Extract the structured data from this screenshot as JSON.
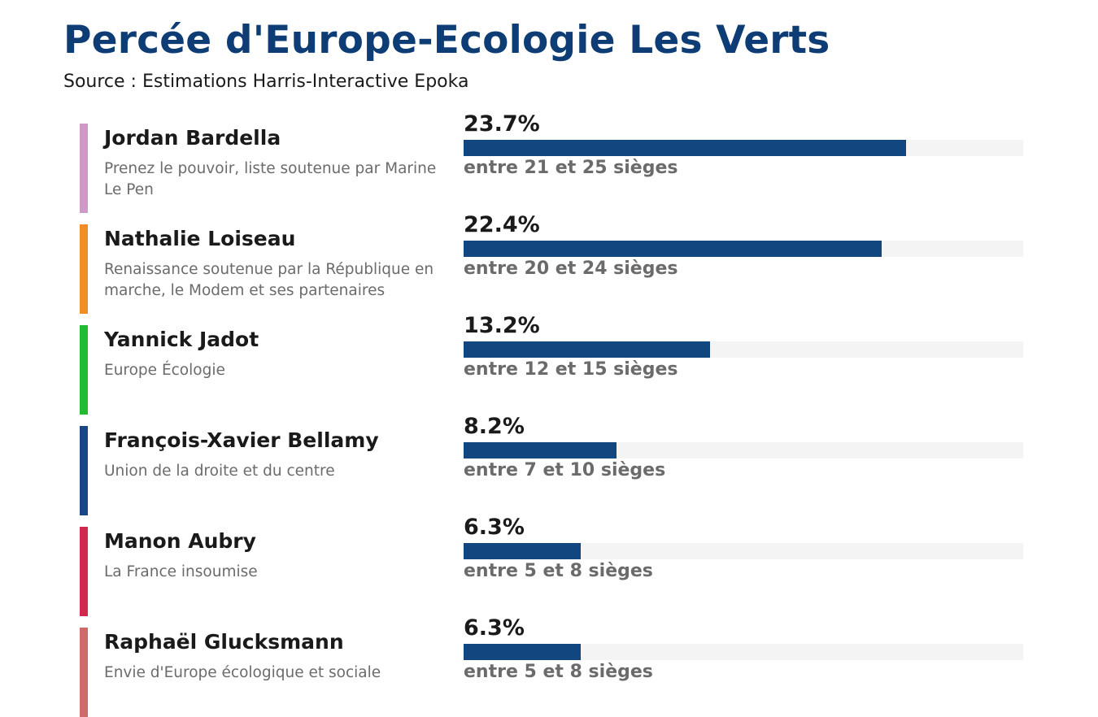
{
  "title": "Percée d'Europe-Ecologie Les Verts",
  "subtitle": "Source : Estimations Harris-Interactive Epoka",
  "chart_data": {
    "type": "bar",
    "orientation": "horizontal",
    "title": "Percée d'Europe-Ecologie Les Verts",
    "subtitle": "Source : Estimations Harris-Interactive Epoka",
    "xlim": [
      0,
      30
    ],
    "categories": [
      "Jordan Bardella",
      "Nathalie Loiseau",
      "Yannick Jadot",
      "François-Xavier Bellamy",
      "Manon Aubry",
      "Raphaël Glucksmann"
    ],
    "values": [
      23.7,
      22.4,
      13.2,
      8.2,
      6.3,
      6.3
    ],
    "rows": [
      {
        "name": "Jordan Bardella",
        "party": "Prenez le pouvoir, liste soutenue par Marine Le Pen",
        "value": 23.7,
        "value_label": "23.7%",
        "seats": "entre 21 et 25 sièges",
        "color": "#cc99c9"
      },
      {
        "name": "Nathalie Loiseau",
        "party": "Renaissance soutenue par la République en marche, le Modem et ses partenaires",
        "value": 22.4,
        "value_label": "22.4%",
        "seats": "entre 20 et 24 sièges",
        "color": "#f28c28"
      },
      {
        "name": "Yannick Jadot",
        "party": "Europe Écologie",
        "value": 13.2,
        "value_label": "13.2%",
        "seats": "entre 12 et 15 sièges",
        "color": "#22bb33"
      },
      {
        "name": "François-Xavier Bellamy",
        "party": "Union de la droite et du centre",
        "value": 8.2,
        "value_label": "8.2%",
        "seats": "entre 7 et 10 sièges",
        "color": "#1c4587"
      },
      {
        "name": "Manon Aubry",
        "party": "La France insoumise",
        "value": 6.3,
        "value_label": "6.3%",
        "seats": "entre 5 et 8 sièges",
        "color": "#d2284e"
      },
      {
        "name": "Raphaël Glucksmann",
        "party": "Envie d'Europe écologique et sociale",
        "value": 6.3,
        "value_label": "6.3%",
        "seats": "entre 5 et 8 sièges",
        "color": "#d06a6a"
      }
    ],
    "bar_color": "#12467e",
    "track_color": "#f4f4f4",
    "grid": false,
    "legend": "none"
  }
}
